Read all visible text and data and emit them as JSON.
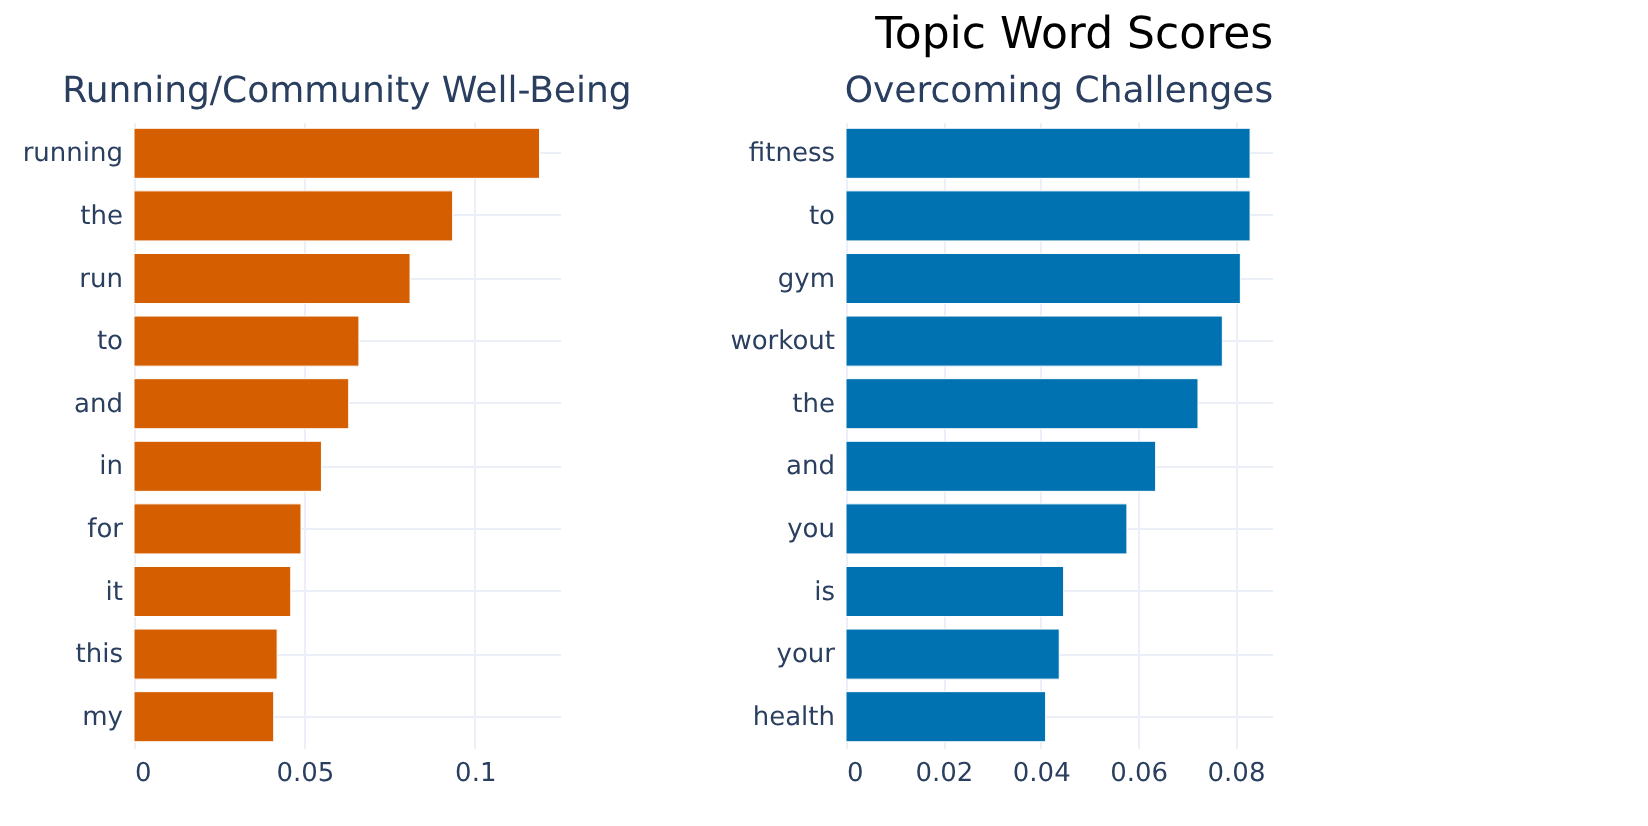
{
  "chart_data": [
    {
      "type": "bar",
      "orientation": "horizontal",
      "title": "Running/Community Well-Being",
      "annotations": [
        "Topic Word Scores"
      ],
      "categories": [
        "running",
        "the",
        "run",
        "to",
        "and",
        "in",
        "for",
        "it",
        "this",
        "my"
      ],
      "values": [
        0.119,
        0.0935,
        0.081,
        0.066,
        0.063,
        0.055,
        0.049,
        0.046,
        0.042,
        0.041
      ],
      "color": "#d55e00",
      "xlim": [
        0,
        0.125
      ],
      "xticks": [
        0,
        0.05,
        0.1
      ],
      "grid": true
    },
    {
      "type": "bar",
      "orientation": "horizontal",
      "title": "Overcoming Challenges",
      "categories": [
        "fitness",
        "to",
        "gym",
        "workout",
        "the",
        "and",
        "you",
        "is",
        "your",
        "health"
      ],
      "values": [
        0.083,
        0.083,
        0.081,
        0.0773,
        0.0723,
        0.0636,
        0.0577,
        0.0447,
        0.0438,
        0.041
      ],
      "color": "#0072b2",
      "xlim": [
        0,
        0.0875
      ],
      "xticks": [
        0,
        0.02,
        0.04,
        0.06,
        0.08
      ],
      "grid": true
    }
  ]
}
